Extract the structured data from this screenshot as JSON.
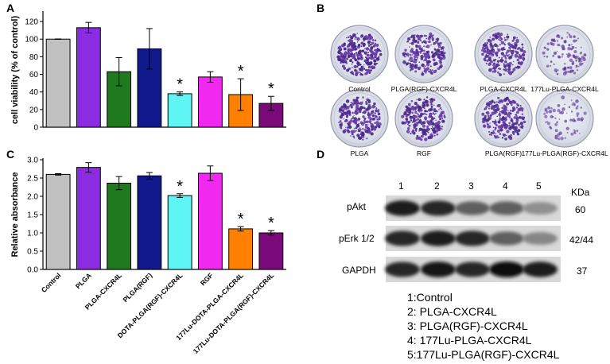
{
  "panels": {
    "A": "A",
    "B": "B",
    "C": "C",
    "D": "D"
  },
  "chart_data": [
    {
      "type": "bar",
      "panel": "A",
      "ylabel": "cell viability (% of control)",
      "ylim": [
        0,
        130
      ],
      "yticks": [
        0,
        20,
        40,
        60,
        80,
        100,
        120
      ],
      "categories": [
        "Control",
        "PLGA",
        "PLGA-CXCR4L",
        "PLGA(RGF)",
        "DOTA-PLGA(RGF)-CXCR4L",
        "RGF",
        "177Lu-DOTA-PLGA-CXCR4L",
        "177Lu-DOTA-PLGA(RGF)-CXCR4L"
      ],
      "values": [
        100,
        113,
        63,
        89,
        38,
        57,
        37,
        27
      ],
      "errors": [
        0,
        6,
        16,
        23,
        2,
        6,
        18,
        8
      ],
      "significant": [
        false,
        false,
        false,
        false,
        true,
        false,
        true,
        true
      ],
      "colors": [
        "#c0c0c0",
        "#8b2be2",
        "#1f7a1f",
        "#101a8c",
        "#5ff5f5",
        "#f028f0",
        "#ff8000",
        "#7a0a7a"
      ]
    },
    {
      "type": "bar",
      "panel": "C",
      "ylabel": "Relative absorbance",
      "ylim": [
        0,
        3.0
      ],
      "yticks": [
        0.0,
        0.5,
        1.0,
        1.5,
        2.0,
        2.5,
        3.0
      ],
      "ytick_labels": [
        "0.0",
        "0.5",
        "1.0",
        "1.5",
        "2.0",
        "2.5",
        "3.0"
      ],
      "categories": [
        "Control",
        "PLGA",
        "PLGA-CXCR4L",
        "PLGA(RGF)",
        "DOTA-PLGA(RGF)-CXCR4L",
        "RGF",
        "177Lu-DOTA-PLGA-CXCR4L",
        "177Lu-DOTA-PLGA(RGF)-CXCR4L"
      ],
      "values": [
        2.6,
        2.79,
        2.36,
        2.56,
        2.02,
        2.63,
        1.11,
        1.0
      ],
      "errors": [
        0.02,
        0.13,
        0.18,
        0.09,
        0.05,
        0.2,
        0.06,
        0.06
      ],
      "significant": [
        false,
        false,
        false,
        false,
        true,
        false,
        true,
        true
      ],
      "colors": [
        "#c0c0c0",
        "#8b2be2",
        "#1f7a1f",
        "#101a8c",
        "#5ff5f5",
        "#f028f0",
        "#ff8000",
        "#7a0a7a"
      ]
    }
  ],
  "panel_b": {
    "labels": [
      "Control",
      "PLGA(RGF)-CXCR4L",
      "PLGA-CXCR4L",
      "177Lu-PLGA-CXCR4L",
      "PLGA",
      "RGF",
      "PLGA(RGF)",
      "177Lu-PLGA(RGF)-CXCR4L"
    ],
    "colony_density": [
      0.95,
      0.75,
      0.75,
      0.3,
      0.8,
      0.85,
      0.8,
      0.15
    ]
  },
  "panel_d": {
    "lane_numbers": [
      "1",
      "2",
      "3",
      "4",
      "5"
    ],
    "unit": "KDa",
    "rows": [
      {
        "name": "pAkt",
        "kda": "60",
        "intensity": [
          0.9,
          0.85,
          0.55,
          0.55,
          0.3
        ]
      },
      {
        "name": "pErk 1/2",
        "kda": "42/44",
        "intensity": [
          0.85,
          0.9,
          0.85,
          0.55,
          0.35
        ]
      },
      {
        "name": "GAPDH",
        "kda": "37",
        "intensity": [
          0.85,
          0.95,
          0.85,
          1.0,
          0.9
        ]
      }
    ],
    "legend": [
      "1:Control",
      "2: PLGA-CXCR4L",
      "3: PLGA(RGF)-CXCR4L",
      "4: 177Lu-PLGA-CXCR4L",
      "5:177Lu-PLGA(RGF)-CXCR4L"
    ]
  },
  "significance_marker": "*"
}
